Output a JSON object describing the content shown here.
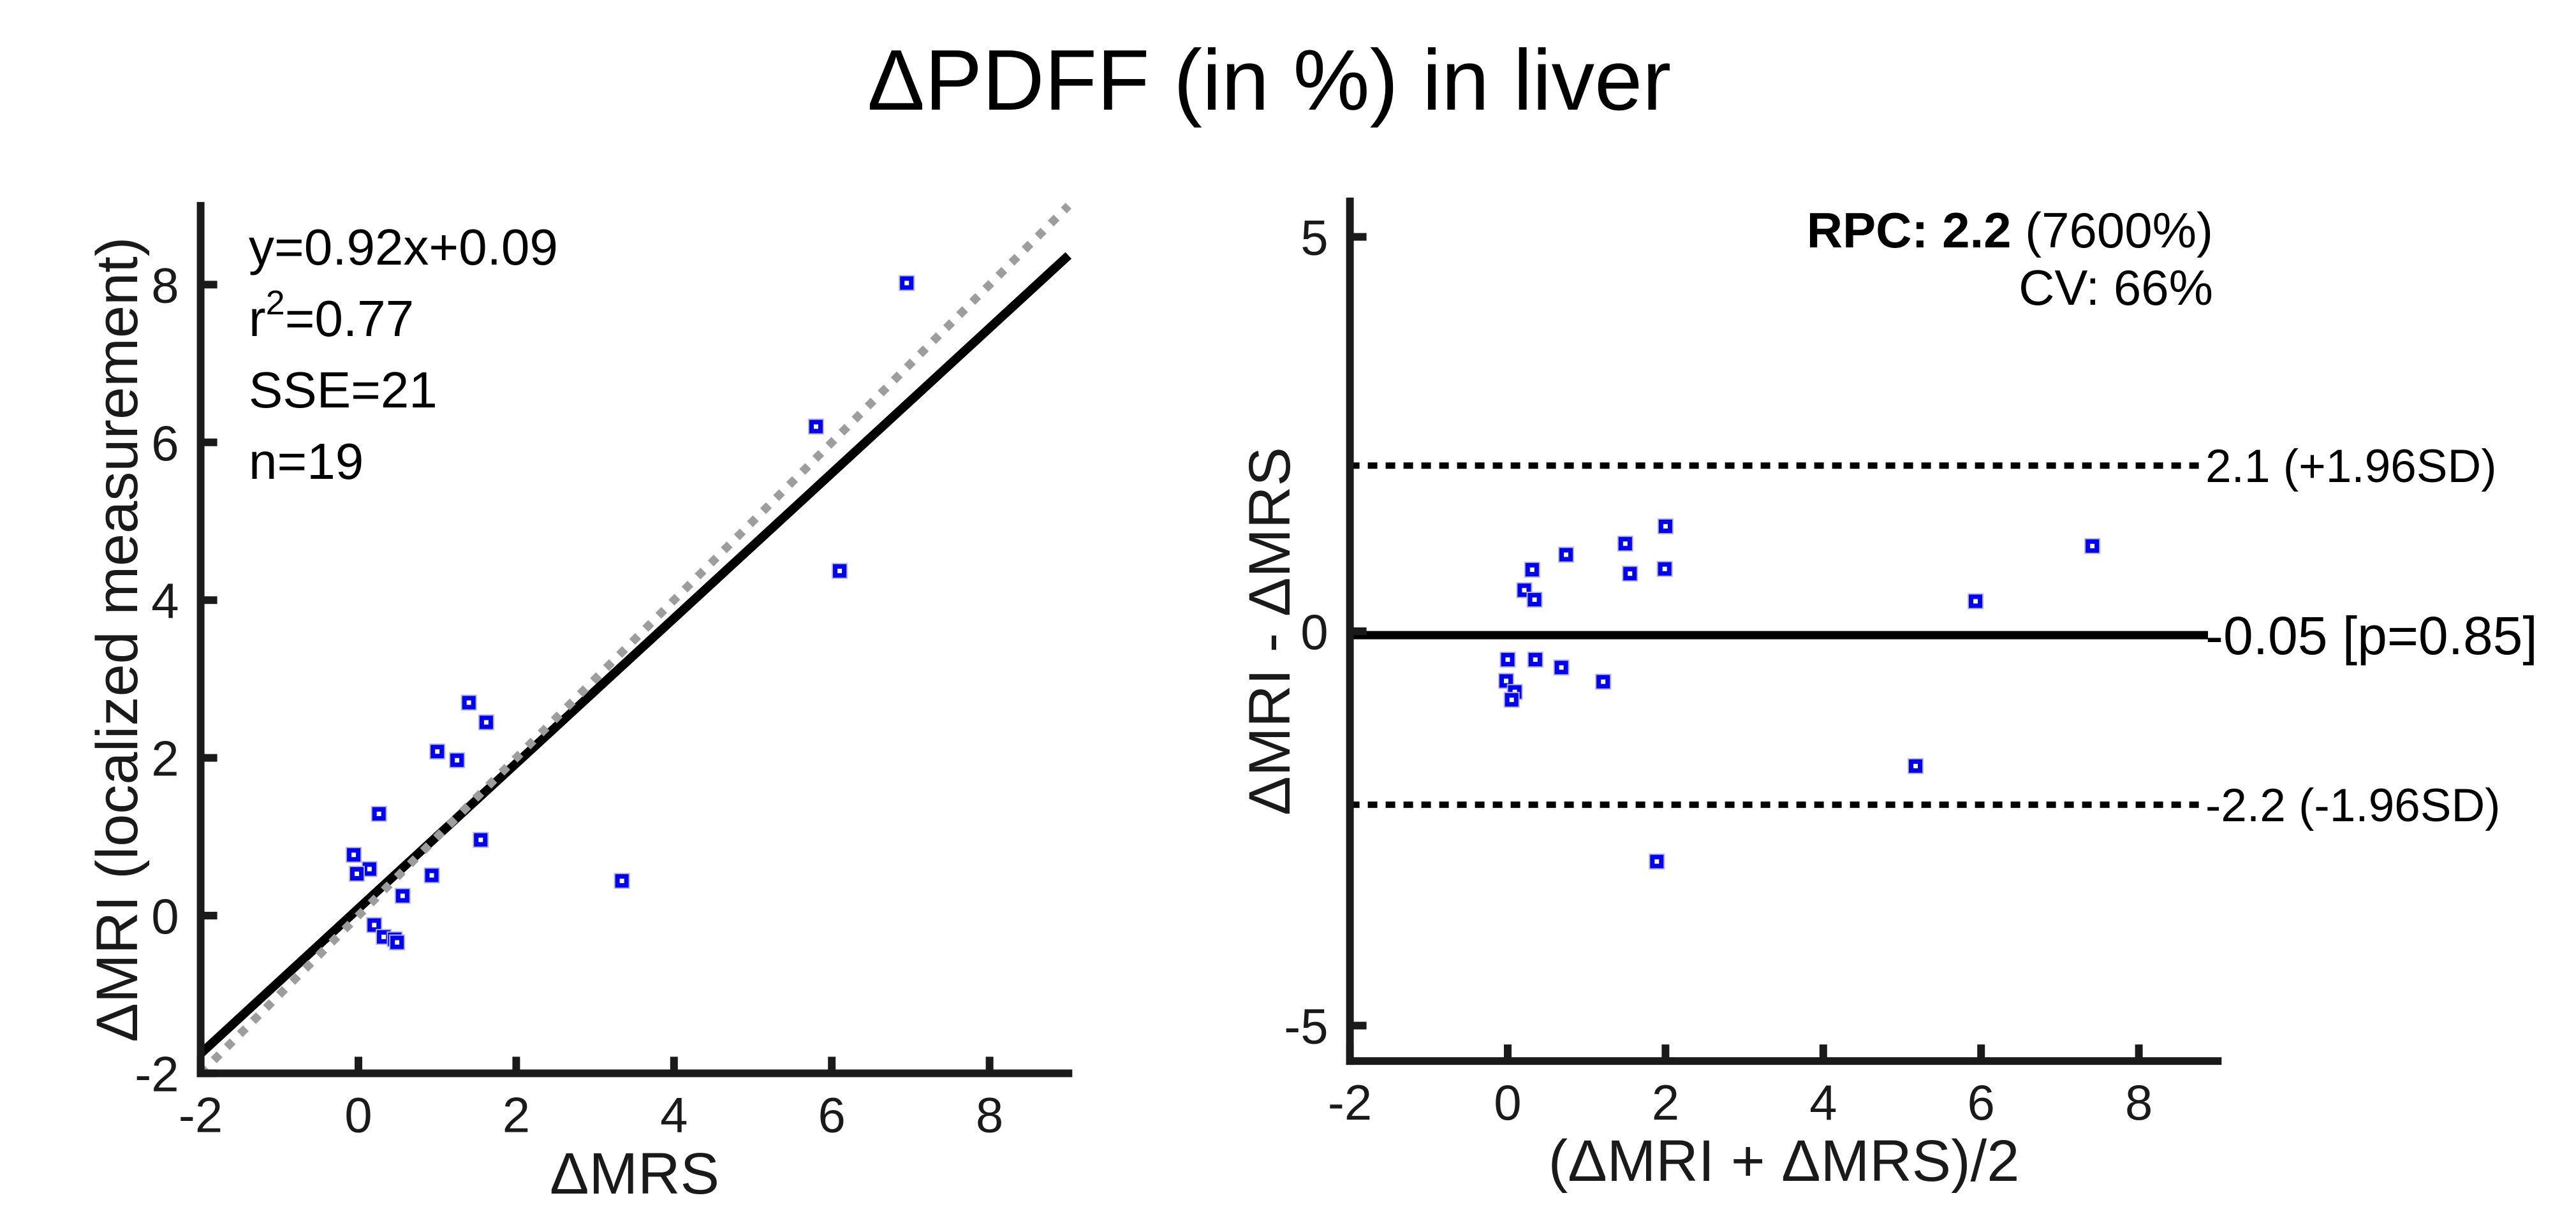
{
  "figure": {
    "title": "ΔPDFF (in %) in liver",
    "background": "#ffffff",
    "marker_color": "#0000f2",
    "marker_edge_color": "#b3b3ef",
    "marker_center_color": "#ffffff",
    "axis_color": "#1a1a1a",
    "identity_line_color": "#9d9d9d",
    "line_color": "#000000"
  },
  "chart_data": [
    {
      "type": "scatter",
      "name": "linear correlation plot",
      "xlabel": "ΔMRS",
      "ylabel": "ΔMRI (localized measurement)",
      "xlim": [
        -2,
        9
      ],
      "ylim": [
        -2,
        9
      ],
      "xticks": [
        -2,
        0,
        2,
        4,
        6,
        8
      ],
      "yticks": [
        -2,
        0,
        2,
        4,
        6,
        8
      ],
      "grid": false,
      "stats_lines": [
        "y=0.92x+0.09",
        "r²=0.77",
        "SSE=21",
        "n=19"
      ],
      "regression": {
        "slope": 0.92,
        "intercept": 0.09
      },
      "identity_line": true,
      "points": [
        [
          6.95,
          8.02
        ],
        [
          5.8,
          6.2
        ],
        [
          6.1,
          4.37
        ],
        [
          1.4,
          2.7
        ],
        [
          1.62,
          2.45
        ],
        [
          1.0,
          2.08
        ],
        [
          1.25,
          1.97
        ],
        [
          0.26,
          1.29
        ],
        [
          1.55,
          0.96
        ],
        [
          -0.06,
          0.77
        ],
        [
          0.14,
          0.59
        ],
        [
          -0.02,
          0.53
        ],
        [
          0.93,
          0.51
        ],
        [
          3.34,
          0.44
        ],
        [
          0.56,
          0.25
        ],
        [
          0.2,
          -0.12
        ],
        [
          0.32,
          -0.27
        ],
        [
          0.46,
          -0.3
        ],
        [
          0.49,
          -0.34
        ]
      ]
    },
    {
      "type": "scatter",
      "name": "Bland-Altman plot",
      "xlabel": "(ΔMRI + ΔMRS)/2",
      "ylabel": "ΔMRI - ΔMRS",
      "xlim": [
        -2,
        9
      ],
      "ylim": [
        -5.45,
        5.45
      ],
      "xticks": [
        -2,
        0,
        2,
        4,
        6,
        8
      ],
      "yticks": [
        5,
        0,
        -5
      ],
      "grid": false,
      "annotations": {
        "rpc_bold": "RPC: 2.2",
        "rpc_rest": " (7600%)",
        "cv": "CV: 66%"
      },
      "lines": [
        {
          "y": 2.1,
          "style": "dotted",
          "label": "2.1 (+1.96SD)"
        },
        {
          "y": -0.05,
          "style": "solid",
          "label": "-0.05 [p=0.85]"
        },
        {
          "y": -2.2,
          "style": "dotted",
          "label": "-2.2 (-1.96SD)"
        }
      ],
      "points": [
        [
          2.0,
          1.33
        ],
        [
          1.49,
          1.11
        ],
        [
          7.41,
          1.08
        ],
        [
          0.74,
          0.97
        ],
        [
          1.99,
          0.79
        ],
        [
          0.31,
          0.78
        ],
        [
          1.55,
          0.73
        ],
        [
          0.21,
          0.52
        ],
        [
          0.34,
          0.4
        ],
        [
          5.93,
          0.38
        ],
        [
          0.0,
          -0.36
        ],
        [
          0.35,
          -0.36
        ],
        [
          0.68,
          -0.46
        ],
        [
          -0.02,
          -0.63
        ],
        [
          1.21,
          -0.64
        ],
        [
          0.09,
          -0.77
        ],
        [
          0.05,
          -0.87
        ],
        [
          5.17,
          -1.71
        ],
        [
          1.89,
          -2.92
        ]
      ]
    }
  ]
}
